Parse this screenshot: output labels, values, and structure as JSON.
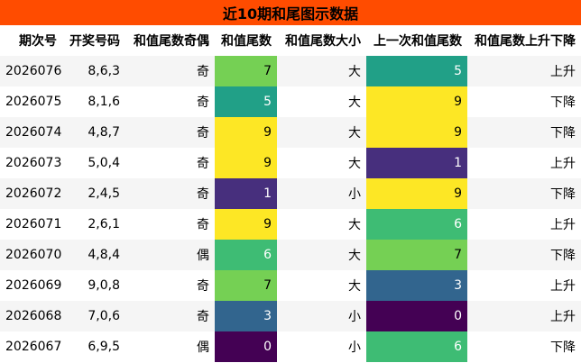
{
  "title": "近10期和尾图示数据",
  "headers": [
    "期次号",
    "开奖号码",
    "和值尾数奇偶",
    "和值尾数",
    "和值尾数大小",
    "上一次和值尾数",
    "和值尾数上升下降"
  ],
  "rows": [
    {
      "issue": "2026076",
      "numbers": "8,6,3",
      "parity": "奇",
      "tail": 7,
      "size": "大",
      "prev_tail": 5,
      "trend": "上升"
    },
    {
      "issue": "2026075",
      "numbers": "8,1,6",
      "parity": "奇",
      "tail": 5,
      "size": "大",
      "prev_tail": 9,
      "trend": "下降"
    },
    {
      "issue": "2026074",
      "numbers": "4,8,7",
      "parity": "奇",
      "tail": 9,
      "size": "大",
      "prev_tail": 9,
      "trend": "下降"
    },
    {
      "issue": "2026073",
      "numbers": "5,0,4",
      "parity": "奇",
      "tail": 9,
      "size": "大",
      "prev_tail": 1,
      "trend": "上升"
    },
    {
      "issue": "2026072",
      "numbers": "2,4,5",
      "parity": "奇",
      "tail": 1,
      "size": "小",
      "prev_tail": 9,
      "trend": "下降"
    },
    {
      "issue": "2026071",
      "numbers": "2,6,1",
      "parity": "奇",
      "tail": 9,
      "size": "大",
      "prev_tail": 6,
      "trend": "上升"
    },
    {
      "issue": "2026070",
      "numbers": "4,8,4",
      "parity": "偶",
      "tail": 6,
      "size": "大",
      "prev_tail": 7,
      "trend": "下降"
    },
    {
      "issue": "2026069",
      "numbers": "9,0,8",
      "parity": "奇",
      "tail": 7,
      "size": "大",
      "prev_tail": 3,
      "trend": "上升"
    },
    {
      "issue": "2026068",
      "numbers": "7,0,6",
      "parity": "奇",
      "tail": 3,
      "size": "小",
      "prev_tail": 0,
      "trend": "上升"
    },
    {
      "issue": "2026067",
      "numbers": "6,9,5",
      "parity": "偶",
      "tail": 0,
      "size": "小",
      "prev_tail": 6,
      "trend": "下降"
    }
  ],
  "colors": {
    "title_bg": "#ff4c00",
    "value_colors": {
      "0": "#440154",
      "1": "#472f7d",
      "3": "#32658e",
      "5": "#21a087",
      "6": "#3ebc74",
      "7": "#75d054",
      "9": "#fde725"
    }
  }
}
